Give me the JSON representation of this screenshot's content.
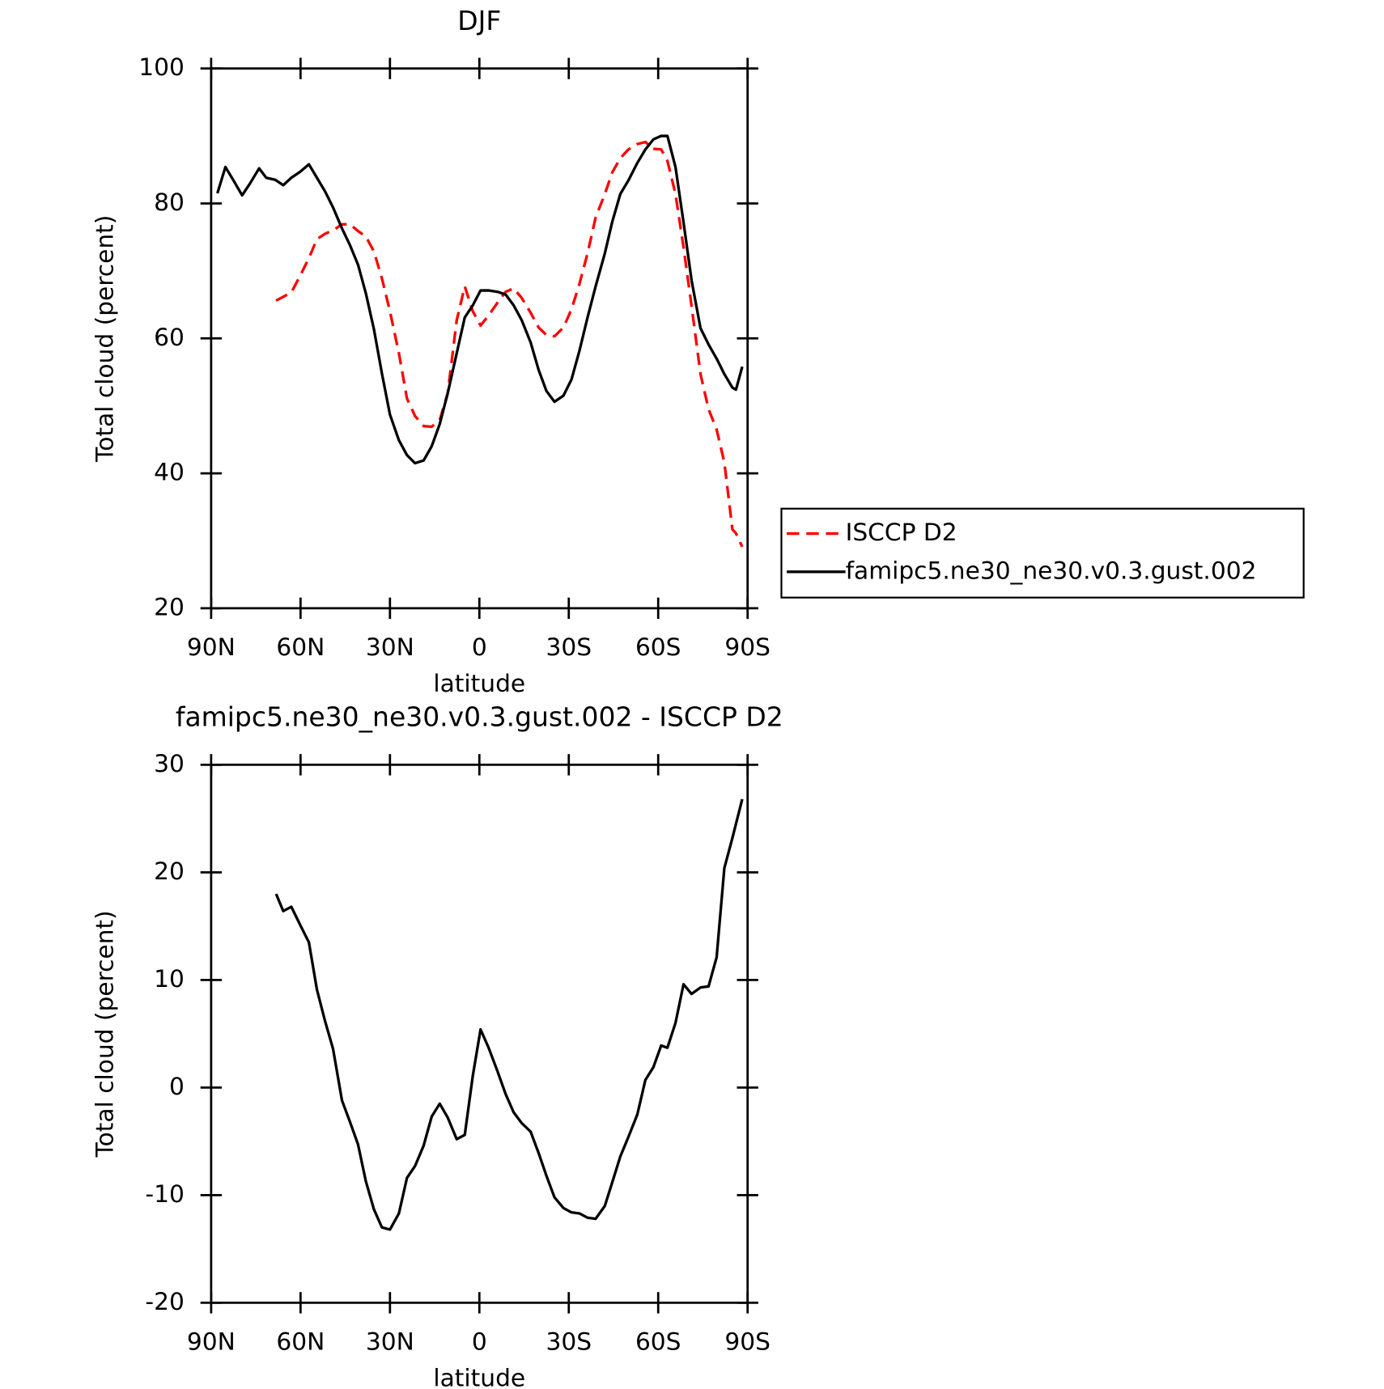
{
  "chart_data": [
    {
      "type": "line",
      "title": "DJF",
      "xlabel": "latitude",
      "ylabel": "Total cloud (percent)",
      "xlim": [
        90,
        -90
      ],
      "xticks": [
        {
          "value": 90,
          "label": "90N"
        },
        {
          "value": 60,
          "label": "60N"
        },
        {
          "value": 30,
          "label": "30N"
        },
        0,
        {
          "value": -30,
          "label": "30S"
        },
        {
          "value": -60,
          "label": "60S"
        },
        {
          "value": -90,
          "label": "90S"
        }
      ],
      "ylim": [
        20,
        100
      ],
      "yticks": [
        20,
        40,
        60,
        80,
        100
      ],
      "legend": "right",
      "series": [
        {
          "name": "ISCCP D2",
          "color": "#ff0000",
          "dashed": true,
          "x": [
            68.2,
            63.1,
            60.1,
            57.2,
            54.5,
            51.8,
            49.1,
            46.1,
            43.4,
            40.7,
            38.1,
            35.4,
            32.7,
            30.0,
            27.0,
            24.3,
            21.6,
            18.7,
            16.0,
            13.3,
            10.6,
            7.6,
            4.9,
            2.2,
            -0.4,
            -3.1,
            -6.1,
            -8.8,
            -11.5,
            -14.2,
            -17.2,
            -19.9,
            -22.5,
            -25.2,
            -28.2,
            -30.9,
            -33.6,
            -36.3,
            -39.0,
            -42.1,
            -44.6,
            -47.3,
            -50.0,
            -53.0,
            -55.7,
            -58.4,
            -61.0,
            -63.1,
            -65.8,
            -68.5,
            -71.2,
            -74.2,
            -76.9,
            -79.6,
            -82.2,
            -84.9,
            -86.1,
            -88.2
          ],
          "values": [
            65.6,
            66.8,
            69.3,
            71.9,
            74.7,
            75.5,
            76.0,
            76.9,
            76.9,
            75.9,
            75.1,
            72.9,
            68.9,
            64.0,
            57.8,
            51.1,
            48.5,
            47.0,
            46.9,
            47.9,
            51.9,
            62.7,
            67.7,
            64.0,
            61.9,
            63.4,
            65.3,
            66.9,
            67.4,
            66.0,
            63.8,
            61.6,
            60.5,
            60.3,
            61.6,
            64.3,
            68.1,
            72.6,
            77.9,
            81.4,
            84.6,
            86.7,
            88.0,
            88.8,
            89.1,
            88.1,
            88.0,
            86.3,
            81.4,
            73.5,
            64.8,
            54.7,
            49.5,
            46.5,
            41.6,
            31.7,
            31.1,
            29.1
          ]
        },
        {
          "name": "famipc5.ne30_ne30.v0.3.gust.002",
          "color": "#000000",
          "dashed": false,
          "x": [
            87.9,
            85.2,
            82.5,
            79.6,
            76.9,
            73.9,
            71.5,
            68.5,
            65.8,
            63.1,
            60.1,
            57.2,
            54.5,
            51.8,
            49.1,
            46.1,
            43.4,
            40.7,
            38.1,
            35.4,
            32.7,
            30.0,
            27.0,
            24.3,
            21.6,
            18.7,
            16.0,
            13.3,
            10.6,
            7.6,
            4.9,
            2.2,
            -0.4,
            -3.1,
            -6.1,
            -8.8,
            -11.5,
            -14.2,
            -17.2,
            -19.9,
            -22.5,
            -25.2,
            -28.2,
            -30.9,
            -33.6,
            -36.3,
            -39.0,
            -42.1,
            -44.6,
            -47.3,
            -50.0,
            -53.0,
            -55.7,
            -58.4,
            -61.0,
            -63.1,
            -65.8,
            -68.5,
            -71.2,
            -74.2,
            -76.9,
            -79.6,
            -82.2,
            -84.9,
            -86.1,
            -88.2
          ],
          "values": [
            81.5,
            85.4,
            83.4,
            81.2,
            83.0,
            85.2,
            83.8,
            83.5,
            82.7,
            83.8,
            84.7,
            85.8,
            83.8,
            81.8,
            79.4,
            76.3,
            73.8,
            70.9,
            66.7,
            61.4,
            54.8,
            48.7,
            44.9,
            42.7,
            41.5,
            41.9,
            44.0,
            47.3,
            51.9,
            57.8,
            63.1,
            64.9,
            67.1,
            67.1,
            66.9,
            66.5,
            64.9,
            62.7,
            59.4,
            55.3,
            52.2,
            50.6,
            51.5,
            53.9,
            58.2,
            63.1,
            67.7,
            72.6,
            77.3,
            81.4,
            83.4,
            86.0,
            88.0,
            89.5,
            90.0,
            90.0,
            85.4,
            77.2,
            68.6,
            61.5,
            59.1,
            57.0,
            54.7,
            52.7,
            52.4,
            55.8
          ]
        }
      ]
    },
    {
      "type": "line",
      "title": "famipc5.ne30_ne30.v0.3.gust.002 - ISCCP D2",
      "xlabel": "latitude",
      "ylabel": "Total cloud (percent)",
      "xlim": [
        90,
        -90
      ],
      "xticks": [
        {
          "value": 90,
          "label": "90N"
        },
        {
          "value": 60,
          "label": "60N"
        },
        {
          "value": 30,
          "label": "30N"
        },
        0,
        {
          "value": -30,
          "label": "30S"
        },
        {
          "value": -60,
          "label": "60S"
        },
        {
          "value": -90,
          "label": "90S"
        }
      ],
      "ylim": [
        -20,
        30
      ],
      "yticks": [
        -20,
        -10,
        0,
        10,
        20,
        30
      ],
      "series": [
        {
          "color": "#000000",
          "dashed": false,
          "x": [
            68.2,
            65.8,
            63.1,
            60.1,
            57.2,
            54.5,
            51.8,
            49.1,
            46.1,
            43.4,
            40.7,
            38.1,
            35.4,
            32.7,
            30.0,
            27.0,
            24.3,
            21.6,
            18.7,
            16.0,
            13.3,
            10.6,
            7.6,
            4.9,
            2.2,
            -0.4,
            -3.1,
            -6.1,
            -8.8,
            -11.5,
            -14.2,
            -17.2,
            -19.9,
            -22.5,
            -25.2,
            -28.2,
            -30.9,
            -33.6,
            -36.3,
            -39.0,
            -42.1,
            -44.6,
            -47.3,
            -50.0,
            -53.0,
            -55.7,
            -58.4,
            -61.0,
            -63.1,
            -65.8,
            -68.5,
            -71.2,
            -74.2,
            -76.9,
            -79.6,
            -82.2,
            -84.9,
            -88.2
          ],
          "values": [
            18.0,
            16.4,
            16.8,
            15.1,
            13.5,
            9.1,
            6.2,
            3.6,
            -1.2,
            -3.2,
            -5.3,
            -8.7,
            -11.3,
            -13.0,
            -13.2,
            -11.7,
            -8.4,
            -7.3,
            -5.4,
            -2.7,
            -1.5,
            -2.8,
            -4.8,
            -4.4,
            1.1,
            5.4,
            3.7,
            1.5,
            -0.6,
            -2.3,
            -3.3,
            -4.1,
            -6.1,
            -8.2,
            -10.2,
            -11.2,
            -11.6,
            -11.7,
            -12.1,
            -12.2,
            -11.0,
            -8.8,
            -6.4,
            -4.6,
            -2.5,
            0.7,
            1.9,
            3.9,
            3.7,
            6.0,
            9.6,
            8.7,
            9.3,
            9.4,
            12.1,
            20.4,
            23.2,
            26.8
          ]
        }
      ]
    }
  ]
}
